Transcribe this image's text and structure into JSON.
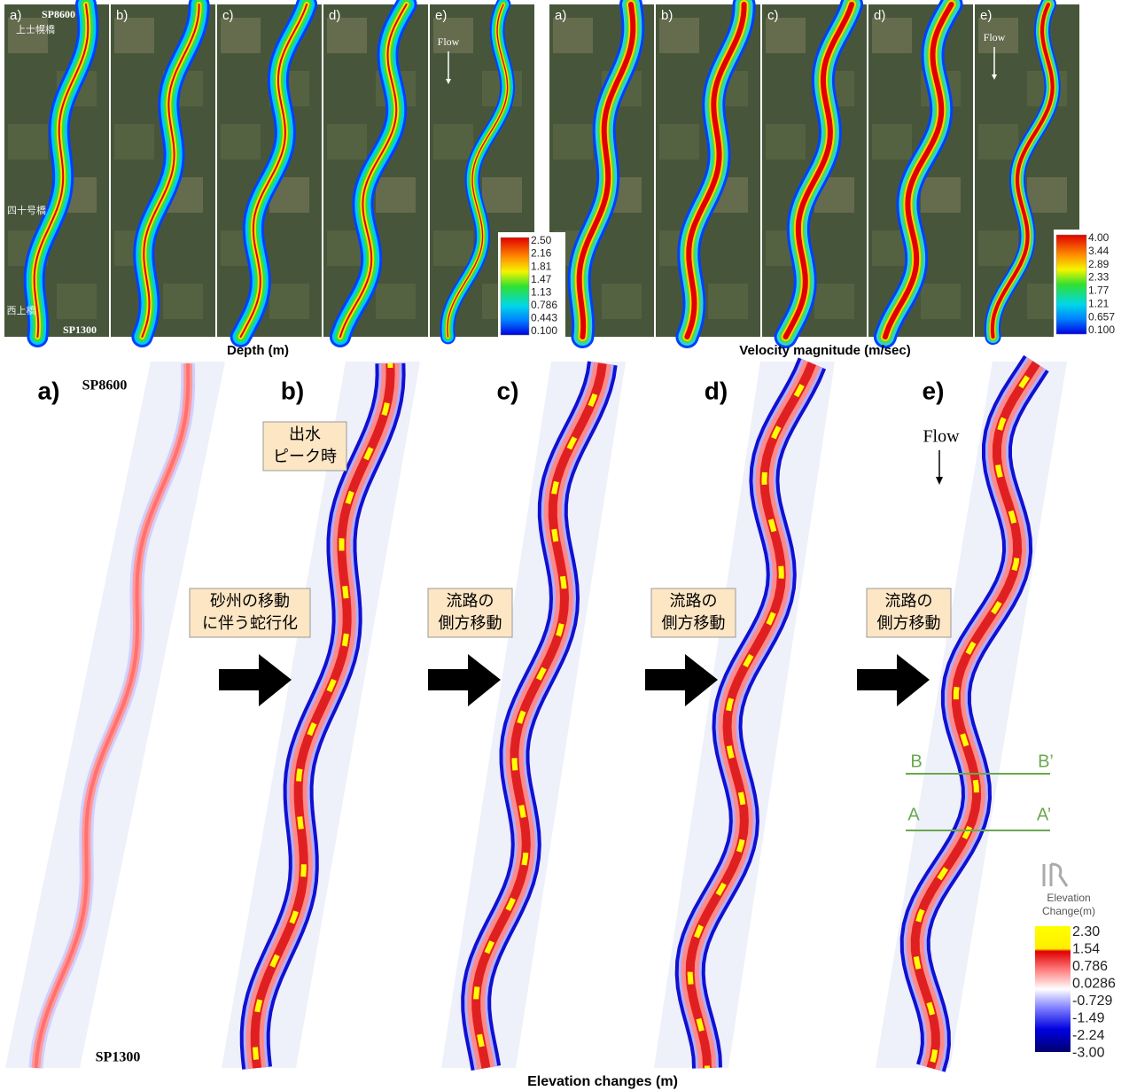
{
  "depth": {
    "panels": [
      "a)",
      "b)",
      "c)",
      "d)",
      "e)"
    ],
    "sp_top": "SP8600",
    "sp_bottom": "SP1300",
    "bridges": [
      "上士幌橋",
      "四十号橋",
      "西上橋"
    ],
    "flow": "Flow",
    "colorbar": [
      "2.50",
      "2.16",
      "1.81",
      "1.47",
      "1.13",
      "0.786",
      "0.443",
      "0.100"
    ],
    "caption": "Depth (m)"
  },
  "velocity": {
    "panels": [
      "a)",
      "b)",
      "c)",
      "d)",
      "e)"
    ],
    "flow": "Flow",
    "colorbar": [
      "4.00",
      "3.44",
      "2.89",
      "2.33",
      "1.77",
      "1.21",
      "0.657",
      "0.100"
    ],
    "caption": "Velocity magnitude (m/sec)"
  },
  "elevation": {
    "panels": [
      "a)",
      "b)",
      "c)",
      "d)",
      "e)"
    ],
    "sp_top": "SP8600",
    "sp_bottom": "SP1300",
    "peak_note": [
      "出水",
      "ピーク時"
    ],
    "transitions": [
      [
        "砂州の移動",
        "に伴う蛇行化"
      ],
      [
        "流路の",
        "側方移動"
      ],
      [
        "流路の",
        "側方移動"
      ],
      [
        "流路の",
        "側方移動"
      ]
    ],
    "flow": "Flow",
    "sections": [
      "B",
      "B’",
      "A",
      "A’"
    ],
    "legend_title": [
      "Elevation",
      "Change(m)"
    ],
    "colorbar": [
      "2.30",
      "1.54",
      "0.786",
      "0.0286",
      "-0.729",
      "-1.49",
      "-2.24",
      "-3.00"
    ],
    "caption": "Elevation changes (m)"
  }
}
